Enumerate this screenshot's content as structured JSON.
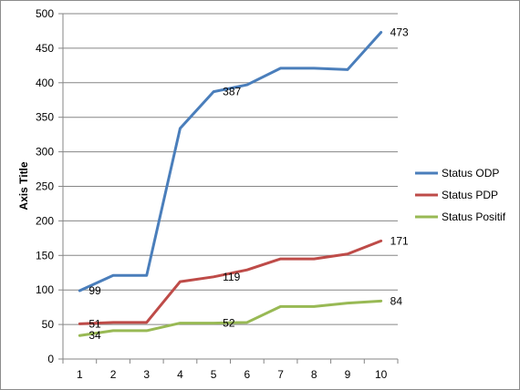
{
  "chart_data": {
    "type": "line",
    "title": "",
    "xlabel": "",
    "ylabel": "Axis Title",
    "categories": [
      "1",
      "2",
      "3",
      "4",
      "5",
      "6",
      "7",
      "8",
      "9",
      "10"
    ],
    "ylim": [
      0,
      500
    ],
    "yticks": [
      "0",
      "50",
      "100",
      "150",
      "200",
      "250",
      "300",
      "350",
      "400",
      "450",
      "500"
    ],
    "grid": true,
    "legend_position": "right",
    "series": [
      {
        "name": "Status ODP",
        "color": "#4a7ebb",
        "values": [
          99,
          121,
          121,
          334,
          387,
          397,
          421,
          421,
          419,
          473
        ],
        "labels": [
          {
            "index": 0,
            "text": "99"
          },
          {
            "index": 4,
            "text": "387"
          },
          {
            "index": 9,
            "text": "473"
          }
        ]
      },
      {
        "name": "Status PDP",
        "color": "#be4b48",
        "values": [
          51,
          53,
          53,
          112,
          119,
          129,
          145,
          145,
          152,
          171
        ],
        "labels": [
          {
            "index": 0,
            "text": "51"
          },
          {
            "index": 4,
            "text": "119"
          },
          {
            "index": 9,
            "text": "171"
          }
        ]
      },
      {
        "name": "Status Positif",
        "color": "#98b954",
        "values": [
          34,
          41,
          41,
          52,
          52,
          53,
          76,
          76,
          81,
          84
        ],
        "labels": [
          {
            "index": 0,
            "text": "34"
          },
          {
            "index": 4,
            "text": "52"
          },
          {
            "index": 9,
            "text": "84"
          }
        ]
      }
    ]
  }
}
